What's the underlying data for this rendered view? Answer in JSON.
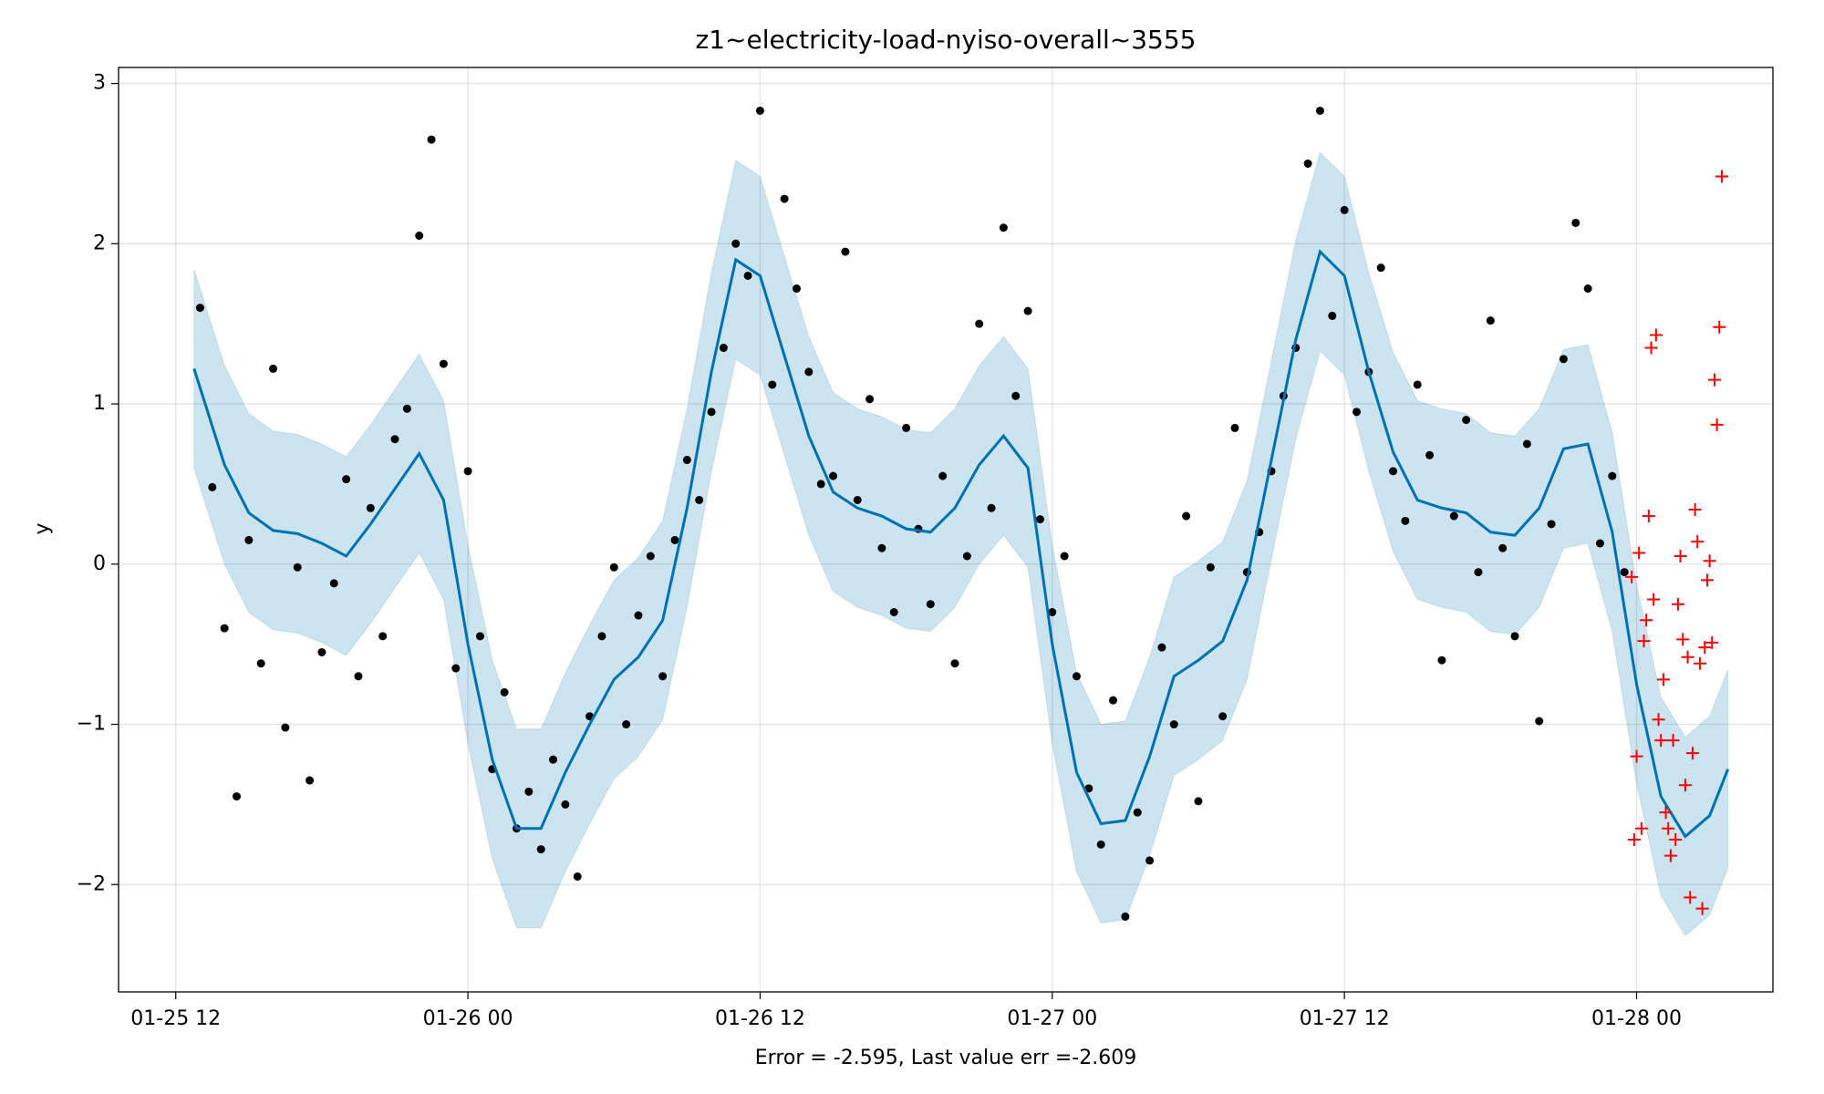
{
  "chart_data": {
    "type": "forecast",
    "title": "z1~electricity-load-nyiso-overall~3555",
    "xlabel": "Error = -2.595, Last value err =-2.609",
    "ylabel": "y",
    "xlim": [
      -2.35,
      65.6
    ],
    "ylim": [
      -2.67,
      3.1
    ],
    "xticks": [
      {
        "value": 0,
        "label": "01-25 12"
      },
      {
        "value": 12,
        "label": "01-26 00"
      },
      {
        "value": 24,
        "label": "01-26 12"
      },
      {
        "value": 36,
        "label": "01-27 00"
      },
      {
        "value": 48,
        "label": "01-27 12"
      },
      {
        "value": 60,
        "label": "01-28 00"
      }
    ],
    "yticks": [
      {
        "value": -2,
        "label": "−2"
      },
      {
        "value": -1,
        "label": "−1"
      },
      0,
      1,
      2,
      3
    ],
    "grid": true,
    "forecast": {
      "color": "#0072b2",
      "x": [
        0.75,
        1,
        2,
        3,
        4,
        5,
        6,
        7,
        8,
        9,
        10,
        11,
        12,
        13,
        14,
        15,
        16,
        17,
        18,
        19,
        20,
        21,
        22,
        23,
        24,
        25,
        26,
        27,
        28,
        29,
        30,
        31,
        32,
        33,
        34,
        35,
        36,
        37,
        38,
        39,
        40,
        41,
        42,
        43,
        44,
        45,
        46,
        47,
        48,
        49,
        50,
        51,
        52,
        53,
        54,
        55,
        56,
        57,
        58,
        59,
        60,
        61,
        62,
        63,
        63.75
      ],
      "values": [
        1.22,
        1.1,
        0.62,
        0.32,
        0.21,
        0.19,
        0.13,
        0.05,
        0.25,
        0.47,
        0.69,
        0.4,
        -0.5,
        -1.22,
        -1.65,
        -1.65,
        -1.3,
        -1.0,
        -0.72,
        -0.58,
        -0.35,
        0.35,
        1.2,
        1.9,
        1.8,
        1.3,
        0.8,
        0.45,
        0.35,
        0.3,
        0.22,
        0.2,
        0.35,
        0.62,
        0.8,
        0.6,
        -0.5,
        -1.3,
        -1.62,
        -1.6,
        -1.2,
        -0.7,
        -0.6,
        -0.48,
        -0.1,
        0.65,
        1.4,
        1.95,
        1.8,
        1.2,
        0.7,
        0.4,
        0.35,
        0.32,
        0.2,
        0.18,
        0.35,
        0.72,
        0.75,
        0.2,
        -0.75,
        -1.45,
        -1.7,
        -1.57,
        -1.28
      ],
      "upper": [
        1.84,
        1.72,
        1.24,
        0.94,
        0.83,
        0.81,
        0.75,
        0.67,
        0.87,
        1.09,
        1.31,
        1.02,
        0.12,
        -0.6,
        -1.03,
        -1.03,
        -0.68,
        -0.38,
        -0.1,
        0.04,
        0.27,
        0.97,
        1.82,
        2.52,
        2.42,
        1.92,
        1.42,
        1.07,
        0.97,
        0.92,
        0.84,
        0.82,
        0.97,
        1.24,
        1.42,
        1.22,
        0.12,
        -0.68,
        -1.0,
        -0.98,
        -0.58,
        -0.08,
        0.02,
        0.14,
        0.52,
        1.27,
        2.02,
        2.57,
        2.42,
        1.82,
        1.32,
        1.02,
        0.97,
        0.94,
        0.82,
        0.8,
        0.97,
        1.34,
        1.37,
        0.82,
        -0.13,
        -0.83,
        -1.08,
        -0.95,
        -0.66
      ],
      "lower": [
        0.6,
        0.48,
        0.0,
        -0.3,
        -0.41,
        -0.43,
        -0.49,
        -0.57,
        -0.37,
        -0.15,
        0.07,
        -0.22,
        -1.12,
        -1.84,
        -2.27,
        -2.27,
        -1.92,
        -1.62,
        -1.34,
        -1.2,
        -0.97,
        -0.27,
        0.58,
        1.28,
        1.18,
        0.68,
        0.18,
        -0.17,
        -0.27,
        -0.32,
        -0.4,
        -0.42,
        -0.27,
        0.0,
        0.18,
        -0.02,
        -1.12,
        -1.92,
        -2.24,
        -2.22,
        -1.82,
        -1.32,
        -1.22,
        -1.1,
        -0.72,
        0.03,
        0.78,
        1.33,
        1.18,
        0.58,
        0.08,
        -0.22,
        -0.27,
        -0.3,
        -0.42,
        -0.44,
        -0.27,
        0.1,
        0.13,
        -0.42,
        -1.37,
        -2.07,
        -2.32,
        -2.19,
        -1.9
      ]
    },
    "observed": {
      "color": "#000000",
      "x": [
        1,
        1.5,
        2,
        2.5,
        3,
        3.5,
        4,
        4.5,
        5,
        5.5,
        6,
        6.5,
        7,
        7.5,
        8,
        8.5,
        9,
        9.5,
        10,
        10.5,
        11,
        11.5,
        12,
        12.5,
        13,
        13.5,
        14,
        14.5,
        15,
        15.5,
        16,
        16.5,
        17,
        17.5,
        18,
        18.5,
        19,
        19.5,
        20,
        20.5,
        21,
        21.5,
        22,
        22.5,
        23,
        23.5,
        24,
        24.5,
        25,
        25.5,
        26,
        26.5,
        27,
        27.5,
        28,
        28.5,
        29,
        29.5,
        30,
        30.5,
        31,
        31.5,
        32,
        32.5,
        33,
        33.5,
        34,
        34.5,
        35,
        35.5,
        36,
        36.5,
        37,
        37.5,
        38,
        38.5,
        39,
        39.5,
        40,
        40.5,
        41,
        41.5,
        42,
        42.5,
        43,
        43.5,
        44,
        44.5,
        45,
        45.5,
        46,
        46.5,
        47,
        47.5,
        48,
        48.5,
        49,
        49.5,
        50,
        50.5,
        51,
        51.5,
        52,
        52.5,
        53,
        53.5,
        54,
        54.5,
        55,
        55.5,
        56,
        56.5,
        57,
        57.5,
        58,
        58.5,
        59,
        59.5
      ],
      "values": [
        1.6,
        0.48,
        -0.4,
        -1.45,
        0.15,
        -0.62,
        1.22,
        -1.02,
        -0.02,
        -1.35,
        -0.55,
        -0.12,
        0.53,
        -0.7,
        0.35,
        -0.45,
        0.78,
        0.97,
        2.05,
        2.65,
        1.25,
        -0.65,
        0.58,
        -0.45,
        -1.28,
        -0.8,
        -1.65,
        -1.42,
        -1.78,
        -1.22,
        -1.5,
        -1.95,
        -0.95,
        -0.45,
        -0.02,
        -1.0,
        -0.32,
        0.05,
        -0.7,
        0.15,
        0.65,
        0.4,
        0.95,
        1.35,
        2.0,
        1.8,
        2.83,
        1.12,
        2.28,
        1.72,
        1.2,
        0.5,
        0.55,
        1.95,
        0.4,
        1.03,
        0.1,
        -0.3,
        0.85,
        0.22,
        -0.25,
        0.55,
        -0.62,
        0.05,
        1.5,
        0.35,
        2.1,
        1.05,
        1.58,
        0.28,
        -0.3,
        0.05,
        -0.7,
        -1.4,
        -1.75,
        -0.85,
        -2.2,
        -1.55,
        -1.85,
        -0.52,
        -1.0,
        0.3,
        -1.48,
        -0.02,
        -0.95,
        0.85,
        -0.05,
        0.2,
        0.58,
        1.05,
        1.35,
        2.5,
        2.83,
        1.55,
        2.21,
        0.95,
        1.2,
        1.85,
        0.58,
        0.27,
        1.12,
        0.68,
        -0.6,
        0.3,
        0.9,
        -0.05,
        1.52,
        0.1,
        -0.45,
        0.75,
        -0.98,
        0.25,
        1.28,
        2.13,
        1.72,
        0.13,
        0.55,
        -0.05
      ]
    },
    "actual": {
      "color": "#ff0000",
      "x": [
        59.8,
        59.9,
        60.0,
        60.1,
        60.2,
        60.3,
        60.4,
        60.5,
        60.6,
        60.7,
        60.8,
        60.9,
        61.0,
        61.1,
        61.2,
        61.3,
        61.4,
        61.5,
        61.6,
        61.7,
        61.8,
        61.9,
        62.0,
        62.1,
        62.2,
        62.3,
        62.4,
        62.5,
        62.6,
        62.7,
        62.8,
        62.9,
        63.0,
        63.1,
        63.2,
        63.3,
        63.4,
        63.5
      ],
      "values": [
        -0.08,
        -1.72,
        -1.2,
        0.07,
        -1.65,
        -0.48,
        -0.35,
        0.3,
        1.35,
        -0.22,
        1.43,
        -0.97,
        -1.1,
        -0.72,
        -1.55,
        -1.65,
        -1.82,
        -1.1,
        -1.72,
        -0.25,
        0.05,
        -0.47,
        -1.38,
        -0.58,
        -2.08,
        -1.18,
        0.34,
        0.14,
        -0.62,
        -2.15,
        -0.52,
        -0.1,
        0.02,
        -0.49,
        1.15,
        0.87,
        1.48,
        2.42
      ]
    }
  }
}
